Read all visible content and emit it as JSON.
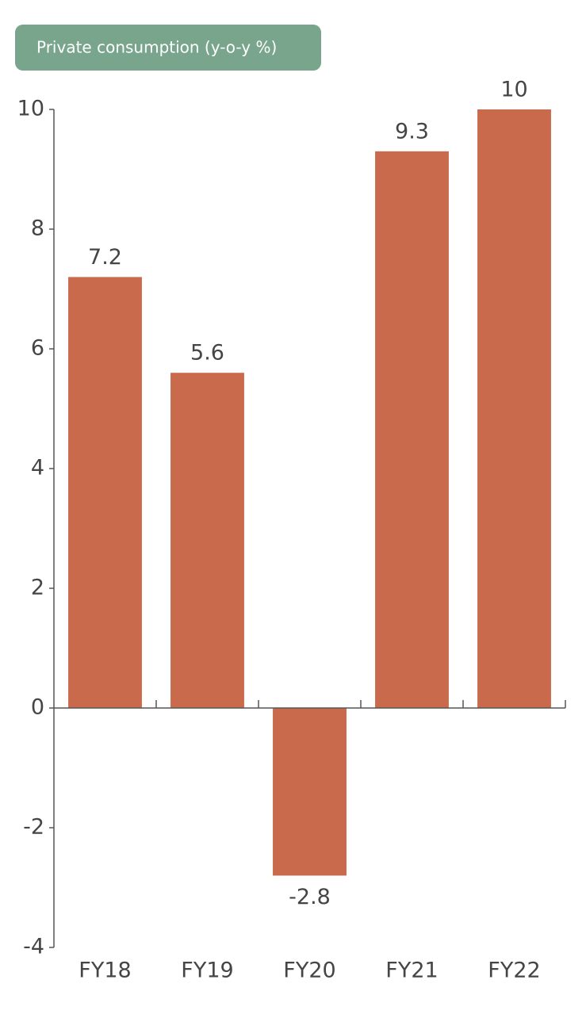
{
  "chart_data": {
    "type": "bar",
    "title": "Private consumption (y-o-y %)",
    "categories": [
      "FY18",
      "FY19",
      "FY20",
      "FY21",
      "FY22"
    ],
    "values": [
      7.2,
      5.6,
      -2.8,
      9.3,
      10
    ],
    "color": "#c96a4c",
    "ylim": [
      -4,
      10
    ],
    "yticks": [
      -4,
      -2,
      0,
      2,
      4,
      6,
      8,
      10
    ],
    "grid": false
  }
}
